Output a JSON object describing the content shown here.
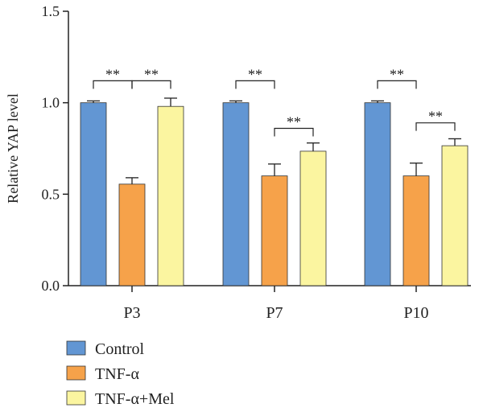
{
  "chart_data": {
    "type": "bar",
    "ylabel": "Relative YAP level",
    "ylim": [
      0,
      1.5
    ],
    "yticks": [
      "0.0",
      "0.5",
      "1.0",
      "1.5"
    ],
    "categories": [
      "P3",
      "P7",
      "P10"
    ],
    "series": [
      {
        "name": "Control",
        "color": "#6296d3",
        "values": [
          1.0,
          1.0,
          1.0
        ],
        "errors": [
          0.01,
          0.01,
          0.01
        ]
      },
      {
        "name": "TNF-α",
        "color": "#f6a24a",
        "values": [
          0.555,
          0.6,
          0.6
        ],
        "errors": [
          0.035,
          0.065,
          0.07
        ]
      },
      {
        "name": "TNF-α+Mel",
        "color": "#fbf5a0",
        "values": [
          0.98,
          0.735,
          0.765
        ],
        "errors": [
          0.045,
          0.045,
          0.038
        ]
      }
    ],
    "significance": [
      {
        "category": "P3",
        "between": [
          "Control",
          "TNF-α"
        ],
        "label": "**",
        "level": 1.12
      },
      {
        "category": "P3",
        "between": [
          "TNF-α",
          "TNF-α+Mel"
        ],
        "label": "**",
        "level": 1.12
      },
      {
        "category": "P7",
        "between": [
          "Control",
          "TNF-α"
        ],
        "label": "**",
        "level": 1.12
      },
      {
        "category": "P7",
        "between": [
          "TNF-α",
          "TNF-α+Mel"
        ],
        "label": "**",
        "level": 0.86
      },
      {
        "category": "P10",
        "between": [
          "Control",
          "TNF-α"
        ],
        "label": "**",
        "level": 1.12
      },
      {
        "category": "P10",
        "between": [
          "TNF-α",
          "TNF-α+Mel"
        ],
        "label": "**",
        "level": 0.89
      }
    ],
    "legend": {
      "position": "bottom-left"
    },
    "grid": false
  }
}
